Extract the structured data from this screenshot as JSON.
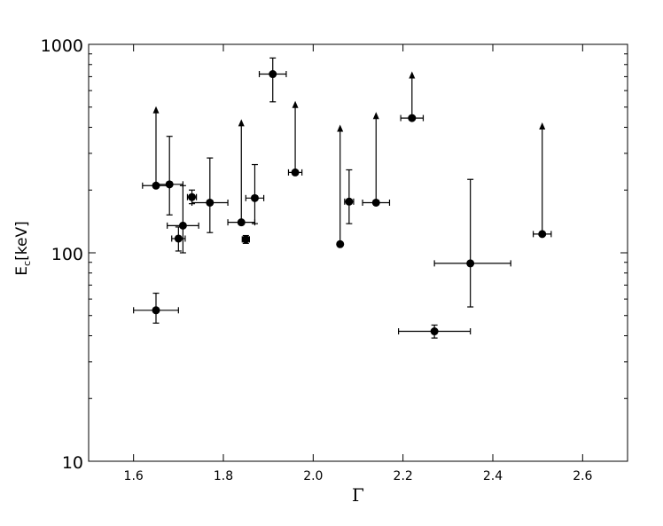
{
  "chart_data": {
    "type": "scatter",
    "xlabel": "Γ",
    "ylabel_main": "E",
    "ylabel_sub": "c",
    "ylabel_rest": "[keV]",
    "xlim": [
      1.5,
      2.7
    ],
    "ylim": [
      10,
      1000
    ],
    "yscale": "log",
    "grid": false,
    "x_ticks": [
      1.6,
      1.8,
      2.0,
      2.2,
      2.4,
      2.6
    ],
    "x_tick_labels": [
      "1.6",
      "1.8",
      "2.0",
      "2.2",
      "2.4",
      "2.6"
    ],
    "y_ticks": [
      10,
      100,
      1000
    ],
    "y_tick_labels": [
      "10",
      "100",
      "1000"
    ],
    "points": [
      {
        "x": 1.65,
        "y": 53,
        "xerr": [
          0.05,
          0.05
        ],
        "ylo": 46,
        "yhi": 64
      },
      {
        "x": 1.65,
        "y": 210,
        "xerr": [
          0.03,
          0.03
        ],
        "lower_limit_to": 490
      },
      {
        "x": 1.68,
        "y": 213,
        "xerr": [
          0.03,
          0.03
        ],
        "ylo": 152,
        "yhi": 362
      },
      {
        "x": 1.7,
        "y": 117,
        "xerr": [
          0.015,
          0.015
        ],
        "ylo": 102,
        "yhi": 133
      },
      {
        "x": 1.71,
        "y": 135,
        "xerr": [
          0.035,
          0.035
        ],
        "ylo": 100,
        "yhi": 210
      },
      {
        "x": 1.73,
        "y": 185,
        "xerr": [
          0.01,
          0.01
        ],
        "ylo": 172,
        "yhi": 200
      },
      {
        "x": 1.77,
        "y": 174,
        "xerr": [
          0.04,
          0.04
        ],
        "ylo": 125,
        "yhi": 285
      },
      {
        "x": 1.84,
        "y": 140,
        "xerr": [
          0.03,
          0.03
        ],
        "lower_limit_to": 425
      },
      {
        "x": 1.85,
        "y": 116,
        "xerr": [
          0.008,
          0.008
        ],
        "ylo": 111,
        "yhi": 121
      },
      {
        "x": 1.87,
        "y": 183,
        "xerr": [
          0.02,
          0.02
        ],
        "ylo": 138,
        "yhi": 265
      },
      {
        "x": 1.91,
        "y": 720,
        "xerr": [
          0.03,
          0.03
        ],
        "ylo": 530,
        "yhi": 860
      },
      {
        "x": 1.96,
        "y": 243,
        "xerr": [
          0.015,
          0.015
        ],
        "lower_limit_to": 520
      },
      {
        "x": 2.06,
        "y": 110,
        "xerr": [
          0,
          0
        ],
        "lower_limit_to": 400
      },
      {
        "x": 2.08,
        "y": 176,
        "xerr": [
          0.01,
          0.01
        ],
        "ylo": 138,
        "yhi": 250
      },
      {
        "x": 2.14,
        "y": 174,
        "xerr": [
          0.03,
          0.03
        ],
        "lower_limit_to": 460
      },
      {
        "x": 2.22,
        "y": 443,
        "xerr": [
          0.025,
          0.025
        ],
        "lower_limit_to": 720
      },
      {
        "x": 2.27,
        "y": 42,
        "xerr": [
          0.08,
          0.08
        ],
        "ylo": 39,
        "yhi": 45
      },
      {
        "x": 2.35,
        "y": 89,
        "xerr": [
          0.08,
          0.09
        ],
        "ylo": 55,
        "yhi": 225
      },
      {
        "x": 2.51,
        "y": 123,
        "xerr": [
          0.02,
          0.02
        ],
        "lower_limit_to": 410
      }
    ]
  }
}
